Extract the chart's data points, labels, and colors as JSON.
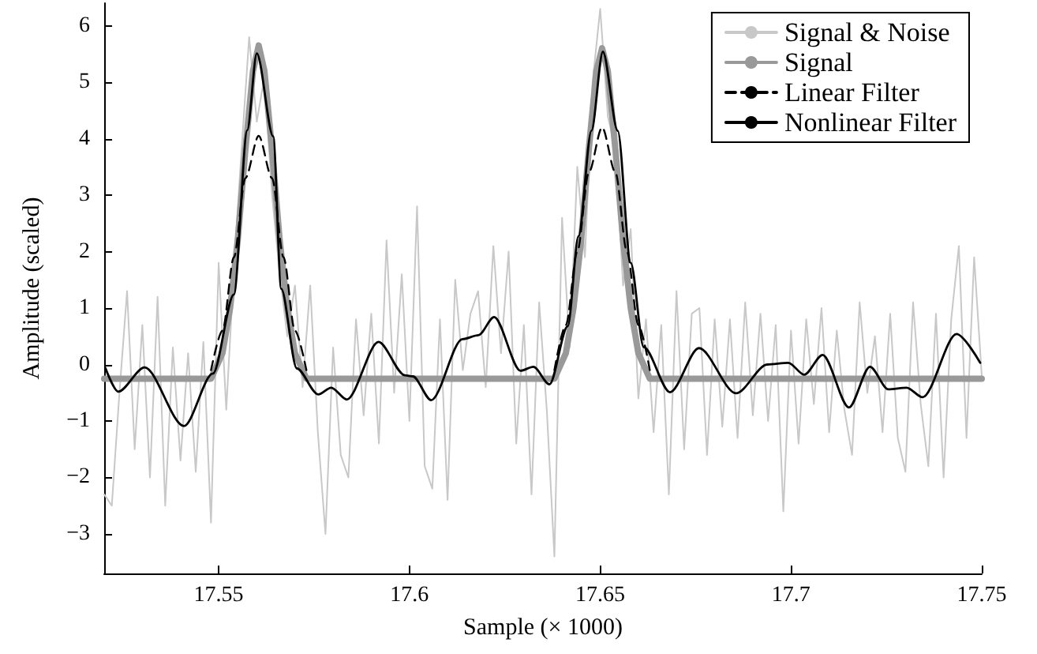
{
  "chart_data": {
    "type": "line",
    "xlabel": "Sample (× 1000)",
    "ylabel": "Amplitude (scaled)",
    "xlim": [
      17.52,
      17.75
    ],
    "xticks": [
      17.55,
      17.6,
      17.65,
      17.7,
      17.75
    ],
    "ylim": [
      -3.7,
      6.4
    ],
    "yticks": [
      {
        "value": -3,
        "label": "−3"
      },
      {
        "value": -2,
        "label": "−2"
      },
      {
        "value": -1,
        "label": "−1"
      },
      0,
      1,
      2,
      3,
      4,
      5,
      6
    ],
    "grid": false,
    "legend": "top right",
    "marker": "none",
    "series": [
      {
        "name": "Signal & Noise",
        "color": "#c8c8c8",
        "line_style": "solid",
        "x": [
          17.52,
          17.522,
          17.524,
          17.526,
          17.528,
          17.53,
          17.532,
          17.534,
          17.536,
          17.538,
          17.54,
          17.542,
          17.544,
          17.546,
          17.548,
          17.55,
          17.552,
          17.554,
          17.556,
          17.558,
          17.56,
          17.562,
          17.564,
          17.566,
          17.568,
          17.57,
          17.572,
          17.574,
          17.576,
          17.578,
          17.58,
          17.582,
          17.584,
          17.586,
          17.588,
          17.59,
          17.592,
          17.594,
          17.596,
          17.598,
          17.6,
          17.602,
          17.604,
          17.606,
          17.608,
          17.61,
          17.612,
          17.614,
          17.616,
          17.618,
          17.62,
          17.622,
          17.624,
          17.626,
          17.628,
          17.63,
          17.632,
          17.634,
          17.636,
          17.638,
          17.64,
          17.642,
          17.644,
          17.646,
          17.648,
          17.65,
          17.652,
          17.654,
          17.656,
          17.658,
          17.66,
          17.662,
          17.664,
          17.666,
          17.668,
          17.67,
          17.672,
          17.674,
          17.676,
          17.678,
          17.68,
          17.682,
          17.684,
          17.686,
          17.688,
          17.69,
          17.692,
          17.694,
          17.696,
          17.698,
          17.7,
          17.702,
          17.704,
          17.706,
          17.708,
          17.71,
          17.712,
          17.714,
          17.716,
          17.718,
          17.72,
          17.722,
          17.724,
          17.726,
          17.728,
          17.73,
          17.732,
          17.734,
          17.736,
          17.738,
          17.74,
          17.742,
          17.744,
          17.746,
          17.748,
          17.75
        ],
        "values": [
          -2.3,
          -2.5,
          -0.5,
          1.3,
          -1.5,
          0.7,
          -2.0,
          1.2,
          -2.5,
          0.3,
          -1.7,
          0.2,
          -1.9,
          0.4,
          -2.8,
          1.8,
          -0.8,
          1.7,
          3.8,
          5.8,
          4.3,
          5.1,
          3.0,
          1.6,
          0.5,
          1.4,
          -0.4,
          1.4,
          -1.2,
          -3.0,
          0.3,
          -1.6,
          -2.0,
          0.8,
          -0.9,
          0.9,
          -1.4,
          2.2,
          -0.5,
          1.6,
          -1.0,
          2.8,
          -1.8,
          -2.2,
          0.8,
          -2.4,
          1.5,
          -0.1,
          0.9,
          1.3,
          -0.4,
          2.1,
          0.2,
          2.0,
          -1.4,
          0.7,
          -2.3,
          1.1,
          -0.8,
          -3.4,
          2.6,
          0.3,
          3.5,
          1.9,
          5.0,
          6.3,
          4.4,
          3.8,
          1.4,
          2.4,
          -0.6,
          0.8,
          -1.2,
          0.7,
          -2.3,
          1.3,
          -1.5,
          0.9,
          1.0,
          -1.6,
          0.8,
          -1.1,
          0.8,
          -1.3,
          1.1,
          -0.9,
          0.9,
          -1.0,
          0.7,
          -2.6,
          0.6,
          -1.4,
          0.8,
          -0.7,
          1.0,
          -1.2,
          0.6,
          -0.8,
          -1.6,
          1.1,
          -0.5,
          0.5,
          -1.2,
          0.9,
          -1.3,
          -1.9,
          1.1,
          -0.7,
          -1.8,
          0.9,
          -2.0,
          0.8,
          2.1,
          -1.3,
          1.9,
          -0.2
        ]
      },
      {
        "name": "Signal",
        "color": "#999999",
        "line_style": "solid",
        "x": [
          17.52,
          17.548,
          17.551,
          17.553,
          17.555,
          17.557,
          17.559,
          17.5605,
          17.562,
          17.564,
          17.566,
          17.568,
          17.57,
          17.573,
          17.638,
          17.641,
          17.643,
          17.645,
          17.647,
          17.649,
          17.6505,
          17.652,
          17.654,
          17.656,
          17.658,
          17.66,
          17.663,
          17.75
        ],
        "values": [
          -0.25,
          -0.25,
          0.2,
          1.0,
          2.2,
          3.8,
          5.2,
          5.65,
          5.2,
          3.8,
          2.2,
          1.0,
          0.2,
          -0.25,
          -0.25,
          0.2,
          1.0,
          2.2,
          3.8,
          5.2,
          5.6,
          5.2,
          3.8,
          2.2,
          1.0,
          0.2,
          -0.25,
          -0.25
        ]
      },
      {
        "name": "Linear Filter",
        "color": "#000000",
        "line_style": "dashed",
        "x": [
          17.548,
          17.551,
          17.554,
          17.557,
          17.5605,
          17.564,
          17.567,
          17.57,
          17.573,
          null,
          17.638,
          17.641,
          17.644,
          17.647,
          17.6505,
          17.654,
          17.657,
          17.66,
          17.663
        ],
        "values": [
          -0.1,
          0.6,
          1.9,
          3.3,
          4.05,
          3.3,
          1.9,
          0.6,
          -0.1,
          null,
          -0.1,
          0.7,
          2.0,
          3.4,
          4.2,
          3.4,
          2.0,
          0.7,
          -0.1
        ]
      },
      {
        "name": "Nonlinear Filter",
        "color": "#000000",
        "line_style": "solid",
        "x": [
          17.5203,
          17.5237,
          17.5306,
          17.5409,
          17.5485,
          17.554,
          17.5575,
          17.56,
          17.5643,
          17.5664,
          17.5705,
          17.5761,
          17.5795,
          17.5836,
          17.5919,
          17.5988,
          17.6009,
          17.6057,
          17.6139,
          17.6181,
          17.6222,
          17.6291,
          17.6325,
          17.6367,
          17.6415,
          17.6443,
          17.6477,
          17.6507,
          17.6546,
          17.658,
          17.6614,
          17.6683,
          17.6759,
          17.6856,
          17.6938,
          17.6993,
          17.7035,
          17.7083,
          17.7152,
          17.7207,
          17.7255,
          17.7303,
          17.7345,
          17.7434,
          17.7496
        ],
        "values": [
          -0.06,
          -0.48,
          -0.05,
          -1.09,
          -0.16,
          1.24,
          4.15,
          5.51,
          4.04,
          1.34,
          -0.07,
          -0.53,
          -0.41,
          -0.62,
          0.4,
          -0.19,
          -0.21,
          -0.63,
          0.45,
          0.52,
          0.84,
          -0.11,
          -0.04,
          -0.35,
          0.68,
          2.27,
          4.14,
          5.54,
          4.14,
          1.8,
          0.31,
          -0.49,
          0.29,
          -0.51,
          0,
          0.03,
          -0.18,
          0.17,
          -0.76,
          -0.04,
          -0.44,
          -0.41,
          -0.58,
          0.54,
          0.03
        ]
      }
    ]
  }
}
